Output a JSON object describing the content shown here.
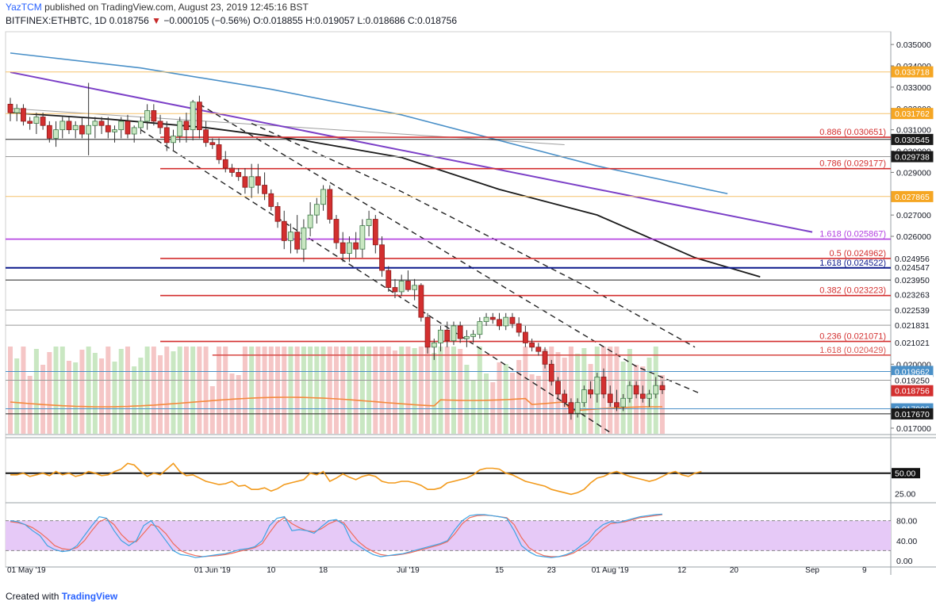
{
  "header": {
    "user": "YazTCM",
    "published": "published on TradingView.com, August 23, 2019 12:45:16 BST",
    "symbol": "BITFINEX:ETHBTC, 1D",
    "last": "0.018756",
    "arrow": "▼",
    "change": "−0.000105 (−0.56%)",
    "ohlc": "O:0.018855 H:0.019057 L:0.018686 C:0.018756"
  },
  "footer": {
    "created_with": "Created with",
    "brand": "TradingView"
  },
  "colors": {
    "bull": "#1fa37a",
    "bull_fill": "#c9e7c2",
    "bear": "#d32f2f",
    "sma_blue": "#4a90c8",
    "sma_black": "#1a1a1a",
    "trend_purple": "#7b3fc7",
    "fib_red": "#d32f2f",
    "rsi": "#f29a1c",
    "stoch_k": "#3ea3e3",
    "stoch_d": "#ef6b5b",
    "stoch_band": "#e6c9f7"
  },
  "chart_data": {
    "type": "candlestick",
    "pair": "BITFINEX:ETHBTC",
    "interval": "1D",
    "ylim": [
      0.0167,
      0.0356
    ],
    "price_ticks": [
      "0.035000",
      "0.034000",
      "0.033000",
      "0.032000",
      "0.031000",
      "0.030000",
      "0.029000",
      "0.027000",
      "0.026000",
      "0.020000",
      "0.017000"
    ],
    "x_ticks": [
      {
        "label": "01 May '19",
        "day": 0
      },
      {
        "label": "01 Jun '19",
        "day": 31
      },
      {
        "label": "10",
        "day": 40
      },
      {
        "label": "18",
        "day": 48
      },
      {
        "label": "Jul '19",
        "day": 61
      },
      {
        "label": "15",
        "day": 75
      },
      {
        "label": "23",
        "day": 83
      },
      {
        "label": "01 Aug '19",
        "day": 92
      },
      {
        "label": "12",
        "day": 103
      },
      {
        "label": "20",
        "day": 111
      },
      {
        "label": "Sep",
        "day": 123
      },
      {
        "label": "9",
        "day": 131
      }
    ],
    "candles": [
      [
        0.0322,
        0.0325,
        0.0314,
        0.0318
      ],
      [
        0.0318,
        0.0322,
        0.0314,
        0.032
      ],
      [
        0.032,
        0.0322,
        0.0312,
        0.0314
      ],
      [
        0.0314,
        0.0316,
        0.031,
        0.0313
      ],
      [
        0.0313,
        0.0318,
        0.0308,
        0.0316
      ],
      [
        0.0316,
        0.0318,
        0.031,
        0.0312
      ],
      [
        0.0312,
        0.0314,
        0.0304,
        0.0306
      ],
      [
        0.0306,
        0.0314,
        0.0302,
        0.031
      ],
      [
        0.031,
        0.0316,
        0.0306,
        0.0314
      ],
      [
        0.0314,
        0.0316,
        0.0308,
        0.031
      ],
      [
        0.031,
        0.0314,
        0.0306,
        0.0312
      ],
      [
        0.0312,
        0.0316,
        0.0306,
        0.0308
      ],
      [
        0.0308,
        0.0332,
        0.0298,
        0.0312
      ],
      [
        0.0312,
        0.0316,
        0.0306,
        0.0314
      ],
      [
        0.0314,
        0.0316,
        0.0308,
        0.0312
      ],
      [
        0.0312,
        0.0316,
        0.0306,
        0.0309
      ],
      [
        0.0309,
        0.0312,
        0.0304,
        0.031
      ],
      [
        0.031,
        0.0316,
        0.0306,
        0.0314
      ],
      [
        0.0314,
        0.0317,
        0.0306,
        0.0308
      ],
      [
        0.0308,
        0.0312,
        0.0304,
        0.0311
      ],
      [
        0.0311,
        0.0316,
        0.0308,
        0.0314
      ],
      [
        0.0314,
        0.0322,
        0.031,
        0.0319
      ],
      [
        0.0319,
        0.0322,
        0.0312,
        0.0314
      ],
      [
        0.0314,
        0.0317,
        0.0308,
        0.0311
      ],
      [
        0.0311,
        0.0314,
        0.03,
        0.0304
      ],
      [
        0.0304,
        0.031,
        0.03,
        0.0307
      ],
      [
        0.0307,
        0.0316,
        0.0304,
        0.0314
      ],
      [
        0.0314,
        0.0318,
        0.0304,
        0.031
      ],
      [
        0.031,
        0.0324,
        0.0305,
        0.0323
      ],
      [
        0.0323,
        0.0326,
        0.0306,
        0.031
      ],
      [
        0.031,
        0.0314,
        0.0302,
        0.0304
      ],
      [
        0.0304,
        0.0306,
        0.0301,
        0.0303
      ],
      [
        0.0303,
        0.0306,
        0.0294,
        0.0296
      ],
      [
        0.0296,
        0.03,
        0.029,
        0.0292
      ],
      [
        0.0292,
        0.0294,
        0.0288,
        0.029
      ],
      [
        0.029,
        0.0292,
        0.0286,
        0.0288
      ],
      [
        0.0288,
        0.0292,
        0.028,
        0.0283
      ],
      [
        0.0283,
        0.0294,
        0.0278,
        0.0288
      ],
      [
        0.0288,
        0.0294,
        0.028,
        0.0284
      ],
      [
        0.0284,
        0.029,
        0.0277,
        0.028
      ],
      [
        0.028,
        0.0282,
        0.0272,
        0.0274
      ],
      [
        0.0274,
        0.0276,
        0.0264,
        0.0267
      ],
      [
        0.0267,
        0.0272,
        0.0254,
        0.0258
      ],
      [
        0.0258,
        0.0266,
        0.0252,
        0.0262
      ],
      [
        0.0262,
        0.027,
        0.0252,
        0.0254
      ],
      [
        0.0254,
        0.0268,
        0.0248,
        0.0264
      ],
      [
        0.0264,
        0.0276,
        0.026,
        0.027
      ],
      [
        0.027,
        0.0278,
        0.0266,
        0.0275
      ],
      [
        0.0275,
        0.0284,
        0.0272,
        0.0282
      ],
      [
        0.0282,
        0.0284,
        0.0266,
        0.0268
      ],
      [
        0.0268,
        0.027,
        0.0254,
        0.0257
      ],
      [
        0.0257,
        0.0262,
        0.0248,
        0.0252
      ],
      [
        0.0252,
        0.026,
        0.0248,
        0.0257
      ],
      [
        0.0257,
        0.0262,
        0.025,
        0.0254
      ],
      [
        0.0254,
        0.0268,
        0.025,
        0.0265
      ],
      [
        0.0265,
        0.0272,
        0.026,
        0.0268
      ],
      [
        0.0268,
        0.027,
        0.0252,
        0.0256
      ],
      [
        0.0256,
        0.026,
        0.0241,
        0.0244
      ],
      [
        0.0244,
        0.0246,
        0.0234,
        0.0236
      ],
      [
        0.0236,
        0.024,
        0.0231,
        0.0234
      ],
      [
        0.0234,
        0.0242,
        0.0232,
        0.0239
      ],
      [
        0.0239,
        0.0244,
        0.0234,
        0.0235
      ],
      [
        0.0235,
        0.024,
        0.023,
        0.0237
      ],
      [
        0.0237,
        0.0238,
        0.022,
        0.0222
      ],
      [
        0.0222,
        0.0224,
        0.0205,
        0.0208
      ],
      [
        0.0208,
        0.0212,
        0.0202,
        0.021
      ],
      [
        0.021,
        0.0218,
        0.0206,
        0.0216
      ],
      [
        0.0216,
        0.022,
        0.0208,
        0.0211
      ],
      [
        0.0211,
        0.022,
        0.0209,
        0.0218
      ],
      [
        0.0218,
        0.022,
        0.021,
        0.0212
      ],
      [
        0.0212,
        0.0216,
        0.0208,
        0.0213
      ],
      [
        0.0213,
        0.0216,
        0.021,
        0.0214
      ],
      [
        0.0214,
        0.0222,
        0.0212,
        0.022
      ],
      [
        0.022,
        0.0224,
        0.0218,
        0.0222
      ],
      [
        0.0222,
        0.0224,
        0.0219,
        0.0221
      ],
      [
        0.0221,
        0.0224,
        0.0216,
        0.0218
      ],
      [
        0.0218,
        0.0224,
        0.0216,
        0.0222
      ],
      [
        0.0222,
        0.0224,
        0.0217,
        0.0219
      ],
      [
        0.0219,
        0.0222,
        0.0213,
        0.0215
      ],
      [
        0.0215,
        0.0218,
        0.0208,
        0.021
      ],
      [
        0.021,
        0.0212,
        0.0206,
        0.0208
      ],
      [
        0.0208,
        0.021,
        0.0204,
        0.0206
      ],
      [
        0.0206,
        0.0208,
        0.0198,
        0.02
      ],
      [
        0.02,
        0.0202,
        0.019,
        0.0192
      ],
      [
        0.0192,
        0.0194,
        0.0184,
        0.0186
      ],
      [
        0.0186,
        0.0188,
        0.018,
        0.0182
      ],
      [
        0.0182,
        0.0184,
        0.0174,
        0.0177
      ],
      [
        0.0177,
        0.0184,
        0.0175,
        0.0182
      ],
      [
        0.0182,
        0.019,
        0.018,
        0.0188
      ],
      [
        0.0188,
        0.0192,
        0.0184,
        0.0186
      ],
      [
        0.0186,
        0.0196,
        0.0182,
        0.0194
      ],
      [
        0.0194,
        0.0198,
        0.0184,
        0.0186
      ],
      [
        0.0186,
        0.019,
        0.018,
        0.0182
      ],
      [
        0.0182,
        0.0188,
        0.0178,
        0.018
      ],
      [
        0.018,
        0.0186,
        0.0178,
        0.0184
      ],
      [
        0.0184,
        0.0192,
        0.0182,
        0.019
      ],
      [
        0.019,
        0.0192,
        0.0184,
        0.0186
      ],
      [
        0.0186,
        0.019,
        0.0182,
        0.0184
      ],
      [
        0.0184,
        0.0188,
        0.018,
        0.0186
      ],
      [
        0.0186,
        0.0194,
        0.0184,
        0.019
      ],
      [
        0.019,
        0.0192,
        0.0186,
        0.0188
      ]
    ],
    "candles_note": "OHLC per daily candle [open, high, low, close], starting 01 May 2019; approximated from chart",
    "horizontal_levels": [
      {
        "label": "0.886 (0.030651)",
        "value": 0.030651,
        "style": "red"
      },
      {
        "label": "0.786 (0.029177)",
        "value": 0.029177,
        "style": "red"
      },
      {
        "label": "1.618 (0.025867)",
        "value": 0.025867,
        "style": "purple"
      },
      {
        "label": "0.5 (0.024962)",
        "value": 0.024962,
        "style": "red"
      },
      {
        "label": "1.618 (0.024522)",
        "value": 0.024522,
        "style": "navy"
      },
      {
        "label": "0.382 (0.023223)",
        "value": 0.023223,
        "style": "red"
      },
      {
        "label": "0.236 (0.021071)",
        "value": 0.021071,
        "style": "red"
      },
      {
        "label": "1.618 (0.020429)",
        "value": 0.020429,
        "style": "pink"
      }
    ],
    "plain_levels": [
      {
        "value": 0.03371,
        "color": "#f5c26b"
      },
      {
        "value": 0.03176,
        "color": "#f5c26b"
      },
      {
        "value": 0.03055,
        "color": "#222222"
      },
      {
        "value": 0.02974,
        "color": "#999999"
      },
      {
        "value": 0.02787,
        "color": "#f5c26b"
      },
      {
        "value": 0.02395,
        "color": "#222222"
      },
      {
        "value": 0.02254,
        "color": "#999999"
      },
      {
        "value": 0.02183,
        "color": "#999999"
      },
      {
        "value": 0.01966,
        "color": "#4a90c8"
      },
      {
        "value": 0.01925,
        "color": "#999999"
      },
      {
        "value": 0.01791,
        "color": "#4a90c8"
      },
      {
        "value": 0.01767,
        "color": "#222222"
      }
    ],
    "price_labels": [
      {
        "text": "0.033718",
        "value": 0.033718,
        "bg": "#f5a623",
        "fg": "#ffffff"
      },
      {
        "text": "0.031762",
        "value": 0.031762,
        "bg": "#f5a623",
        "fg": "#ffffff"
      },
      {
        "text": "0.030545",
        "value": 0.030545,
        "bg": "#1a1a1a",
        "fg": "#ffffff"
      },
      {
        "text": "0.029738",
        "value": 0.029738,
        "bg": "#1a1a1a",
        "fg": "#ffffff"
      },
      {
        "text": "0.027865",
        "value": 0.027865,
        "bg": "#f5a623",
        "fg": "#ffffff"
      },
      {
        "text": "0.024956",
        "value": 0.024956,
        "bg": "#ffffff",
        "fg": "#131722"
      },
      {
        "text": "0.024547",
        "value": 0.024547,
        "bg": "#ffffff",
        "fg": "#131722"
      },
      {
        "text": "0.023950",
        "value": 0.02395,
        "bg": "#ffffff",
        "fg": "#131722"
      },
      {
        "text": "0.023263",
        "value": 0.023263,
        "bg": "#ffffff",
        "fg": "#131722"
      },
      {
        "text": "0.022539",
        "value": 0.022539,
        "bg": "#ffffff",
        "fg": "#131722"
      },
      {
        "text": "0.021831",
        "value": 0.021831,
        "bg": "#ffffff",
        "fg": "#131722"
      },
      {
        "text": "0.021021",
        "value": 0.021021,
        "bg": "#ffffff",
        "fg": "#131722"
      },
      {
        "text": "0.019662",
        "value": 0.019662,
        "bg": "#4a90c8",
        "fg": "#ffffff"
      },
      {
        "text": "0.019250",
        "value": 0.01925,
        "bg": "#ffffff",
        "fg": "#131722"
      },
      {
        "text": "0.018756",
        "value": 0.018756,
        "bg": "#d32f2f",
        "fg": "#ffffff"
      },
      {
        "text": "0.017906",
        "value": 0.017906,
        "bg": "#4a90c8",
        "fg": "#ffffff"
      },
      {
        "text": "0.017670",
        "value": 0.01767,
        "bg": "#1a1a1a",
        "fg": "#ffffff"
      }
    ],
    "trendlines": {
      "purple_descending": [
        [
          0,
          0.0337
        ],
        [
          123,
          0.0262
        ]
      ],
      "blue_sma": [
        [
          0,
          0.0346
        ],
        [
          20,
          0.0339
        ],
        [
          40,
          0.0329
        ],
        [
          60,
          0.0317
        ],
        [
          75,
          0.0305
        ],
        [
          90,
          0.0293
        ],
        [
          110,
          0.028
        ]
      ],
      "black_sma": [
        [
          0,
          0.0318
        ],
        [
          15,
          0.0315
        ],
        [
          30,
          0.0311
        ],
        [
          45,
          0.0305
        ],
        [
          60,
          0.0297
        ],
        [
          75,
          0.0282
        ],
        [
          90,
          0.027
        ],
        [
          105,
          0.025
        ],
        [
          115,
          0.0241
        ]
      ],
      "gray_line": [
        [
          0,
          0.032
        ],
        [
          85,
          0.0303
        ]
      ],
      "channel_upper": [
        [
          29,
          0.0322
        ],
        [
          96,
          0.0199
        ],
        [
          106,
          0.0186
        ]
      ],
      "channel_mid": [
        [
          37,
          0.0313
        ],
        [
          60,
          0.0281
        ],
        [
          88,
          0.0237
        ],
        [
          105,
          0.0208
        ]
      ],
      "channel_lower": [
        [
          20,
          0.031
        ],
        [
          92,
          0.0168
        ]
      ]
    },
    "volume_ma": "orange moving average over volume bars",
    "rsi": {
      "ticks": [
        "50.00",
        "25.00"
      ],
      "level": 50,
      "values": [
        48,
        48,
        50,
        46,
        48,
        50,
        47,
        52,
        48,
        50,
        46,
        48,
        52,
        50,
        47,
        48,
        52,
        55,
        62,
        60,
        52,
        46,
        50,
        48,
        55,
        62,
        52,
        47,
        48,
        44,
        40,
        38,
        36,
        37,
        40,
        34,
        35,
        30,
        30,
        32,
        28,
        31,
        36,
        38,
        40,
        42,
        50,
        48,
        52,
        40,
        44,
        49,
        45,
        42,
        46,
        48,
        46,
        40,
        38,
        38,
        40,
        40,
        38,
        35,
        30,
        30,
        32,
        38,
        40,
        42,
        44,
        48,
        54,
        56,
        56,
        55,
        50,
        48,
        44,
        40,
        38,
        36,
        34,
        30,
        28,
        26,
        24,
        26,
        30,
        38,
        44,
        46,
        50,
        52,
        49,
        46,
        44,
        42,
        40,
        42,
        46,
        50,
        52,
        48,
        46,
        50,
        52
      ]
    },
    "stoch": {
      "ticks": [
        "80.00",
        "40.00",
        "0.00"
      ],
      "upper": 80,
      "lower": 20,
      "k": [
        80,
        78,
        72,
        60,
        50,
        30,
        22,
        18,
        20,
        30,
        50,
        70,
        88,
        85,
        60,
        40,
        30,
        40,
        70,
        80,
        60,
        40,
        20,
        12,
        10,
        6,
        8,
        10,
        12,
        14,
        18,
        22,
        24,
        28,
        40,
        70,
        85,
        88,
        60,
        62,
        60,
        55,
        68,
        80,
        82,
        72,
        40,
        30,
        20,
        12,
        8,
        10,
        12,
        14,
        18,
        22,
        26,
        30,
        34,
        40,
        62,
        80,
        90,
        92,
        92,
        90,
        88,
        85,
        60,
        30,
        18,
        10,
        8,
        6,
        8,
        12,
        18,
        30,
        40,
        60,
        72,
        78,
        76,
        80,
        84,
        88,
        90,
        92,
        93
      ],
      "d": [
        78,
        76,
        72,
        66,
        56,
        44,
        30,
        24,
        22,
        26,
        40,
        60,
        78,
        84,
        72,
        52,
        38,
        38,
        55,
        72,
        68,
        54,
        34,
        20,
        14,
        10,
        8,
        9,
        10,
        12,
        15,
        19,
        22,
        26,
        34,
        56,
        76,
        86,
        74,
        66,
        60,
        58,
        64,
        74,
        80,
        76,
        56,
        38,
        26,
        18,
        12,
        10,
        11,
        13,
        16,
        20,
        24,
        28,
        32,
        38,
        54,
        74,
        86,
        90,
        91,
        90,
        88,
        86,
        72,
        46,
        26,
        16,
        10,
        8,
        8,
        10,
        15,
        24,
        34,
        50,
        64,
        74,
        76,
        78,
        82,
        86,
        88,
        90,
        92
      ]
    }
  }
}
